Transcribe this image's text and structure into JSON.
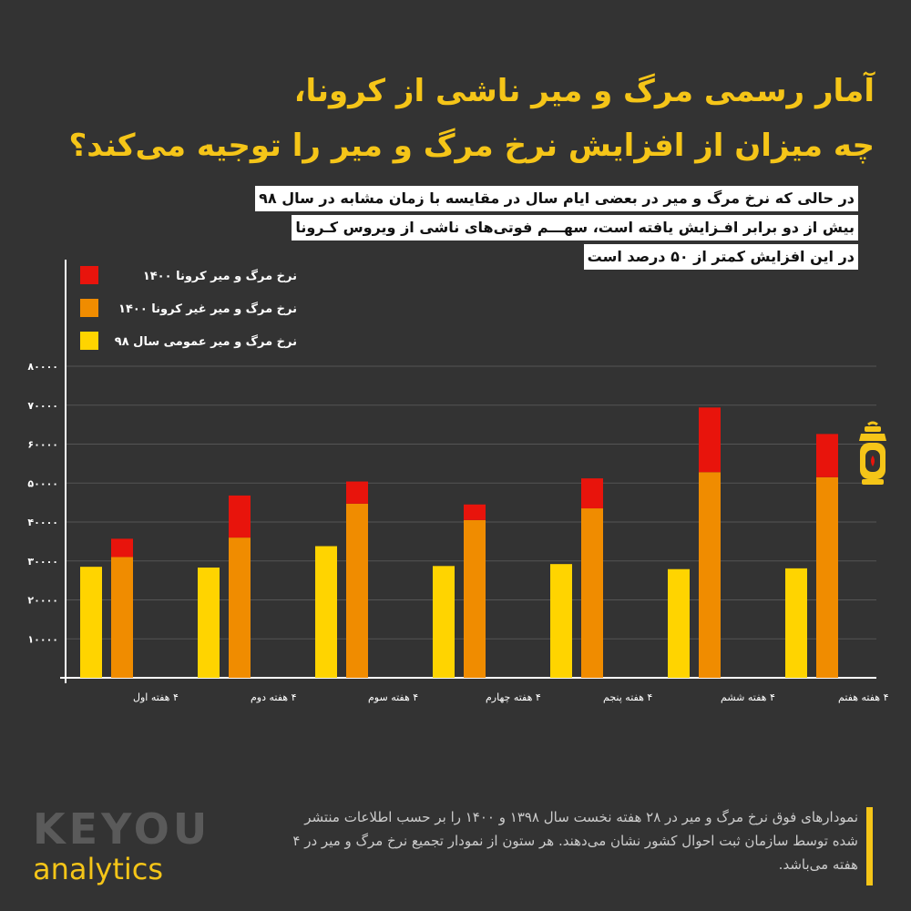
{
  "header": {
    "title_line1": "آمار رسمی مرگ و میر ناشی از کرونا،",
    "title_line2": "چه میزان از افزایش نرخ مرگ و میر را توجیه می‌کند؟"
  },
  "subtitle": {
    "line1": "در حالی که نرخ مرگ و میر در بعضی ایام سال در مقایسه با زمان مشابه در سال ۹۸",
    "line2": "بیش از دو برابر افـزایش یافته است، سهـــم فوتی‌های ناشی از ویروس کـرونا",
    "line3": "در این افزایش کمتر از ۵۰ درصد است"
  },
  "colors": {
    "corona_1400": "#E8140C",
    "non_corona_1400": "#F08C00",
    "general_98": "#FFD400",
    "accent": "#F5C518"
  },
  "chart_data": {
    "type": "bar",
    "categories": [
      "۴ هفته اول",
      "۴ هفته دوم",
      "۴ هفته سوم",
      "۴ هفته چهارم",
      "۴ هفته پنجم",
      "۴ هفته ششم",
      "۴ هفته هفتم"
    ],
    "series": [
      {
        "name": "نرخ مرگ و میر عمومی سال ۹۸",
        "values": [
          28500,
          28300,
          33800,
          28700,
          29200,
          27900,
          28100
        ]
      },
      {
        "name": "نرخ مرگ و میر غیر کرونا ۱۴۰۰",
        "values": [
          31000,
          36000,
          44700,
          40500,
          43500,
          52800,
          51500
        ]
      },
      {
        "name": "نرخ مرگ و میر کرونا ۱۴۰۰",
        "values": [
          4700,
          10800,
          5700,
          4000,
          7700,
          16600,
          11100
        ]
      }
    ],
    "stacked_series": [
      "نرخ مرگ و میر غیر کرونا ۱۴۰۰",
      "نرخ مرگ و میر کرونا ۱۴۰۰"
    ],
    "y_ticks": [
      "۱۰۰۰۰",
      "۲۰۰۰۰",
      "۳۰۰۰۰",
      "۴۰۰۰۰",
      "۵۰۰۰۰",
      "۶۰۰۰۰",
      "۷۰۰۰۰",
      "۸۰۰۰۰"
    ],
    "ylim": [
      0,
      80000
    ],
    "grid": true,
    "legend": "top-left"
  },
  "footer": {
    "note": "نمودارهای فوق نرخ مرگ و میر در ۲۸ هفته نخست سال ۱۳۹۸ و ۱۴۰۰ را بر حسب اطلاعات منتشر شده توسط سازمان ثبت احوال کشور نشان می‌دهند. هر ستون از نمودار تجمیع نرخ مرگ و میر در ۴ هفته می‌باشد."
  },
  "logo": {
    "brand": "KEYOU",
    "sub": "analytics"
  },
  "icons": {
    "decoration": "lantern-icon"
  }
}
